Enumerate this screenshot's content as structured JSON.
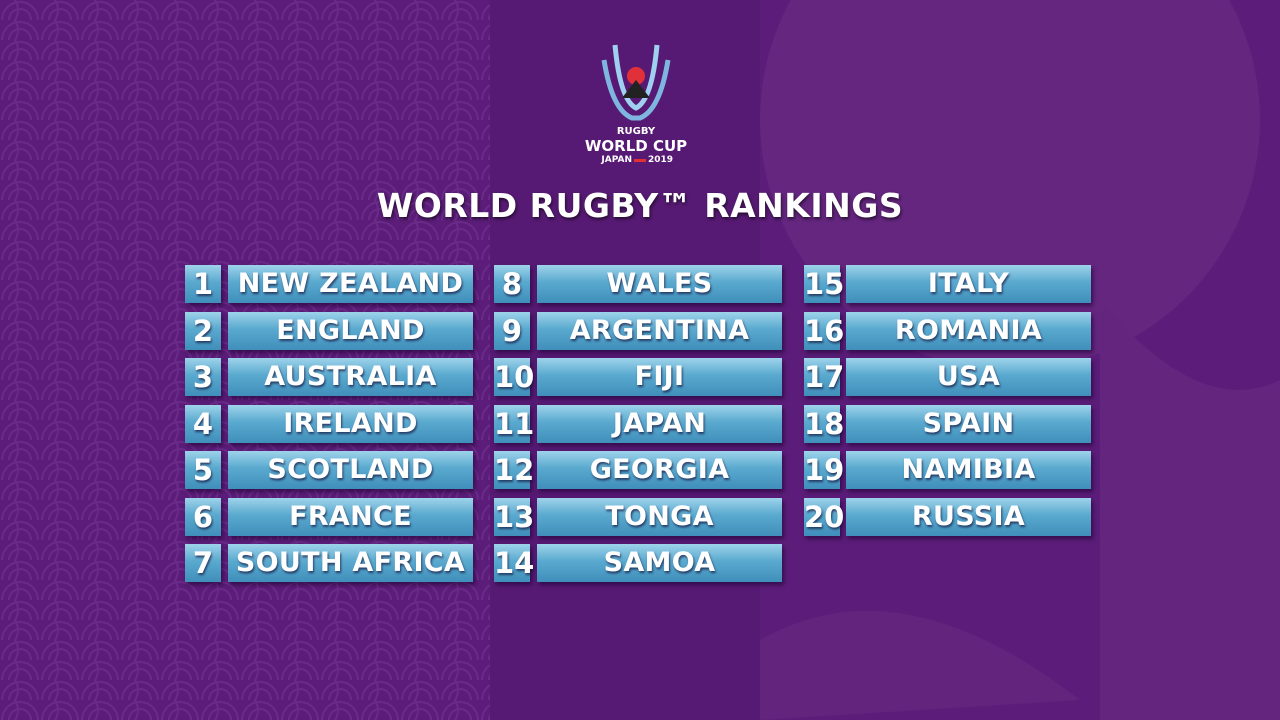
{
  "logo": {
    "line1": "RUGBY",
    "line2": "WORLD CUP",
    "line3": "JAPAN",
    "line4": "2019"
  },
  "title": "WORLD RUGBY™ RANKINGS",
  "rankings": [
    {
      "rank": 1,
      "team": "NEW ZEALAND"
    },
    {
      "rank": 2,
      "team": "ENGLAND"
    },
    {
      "rank": 3,
      "team": "AUSTRALIA"
    },
    {
      "rank": 4,
      "team": "IRELAND"
    },
    {
      "rank": 5,
      "team": "SCOTLAND"
    },
    {
      "rank": 6,
      "team": "FRANCE"
    },
    {
      "rank": 7,
      "team": "SOUTH AFRICA"
    },
    {
      "rank": 8,
      "team": "WALES"
    },
    {
      "rank": 9,
      "team": "ARGENTINA"
    },
    {
      "rank": 10,
      "team": "FIJI"
    },
    {
      "rank": 11,
      "team": "JAPAN"
    },
    {
      "rank": 12,
      "team": "GEORGIA"
    },
    {
      "rank": 13,
      "team": "TONGA"
    },
    {
      "rank": 14,
      "team": "SAMOA"
    },
    {
      "rank": 15,
      "team": "ITALY"
    },
    {
      "rank": 16,
      "team": "ROMANIA"
    },
    {
      "rank": 17,
      "team": "USA"
    },
    {
      "rank": 18,
      "team": "SPAIN"
    },
    {
      "rank": 19,
      "team": "NAMIBIA"
    },
    {
      "rank": 20,
      "team": "RUSSIA"
    }
  ]
}
